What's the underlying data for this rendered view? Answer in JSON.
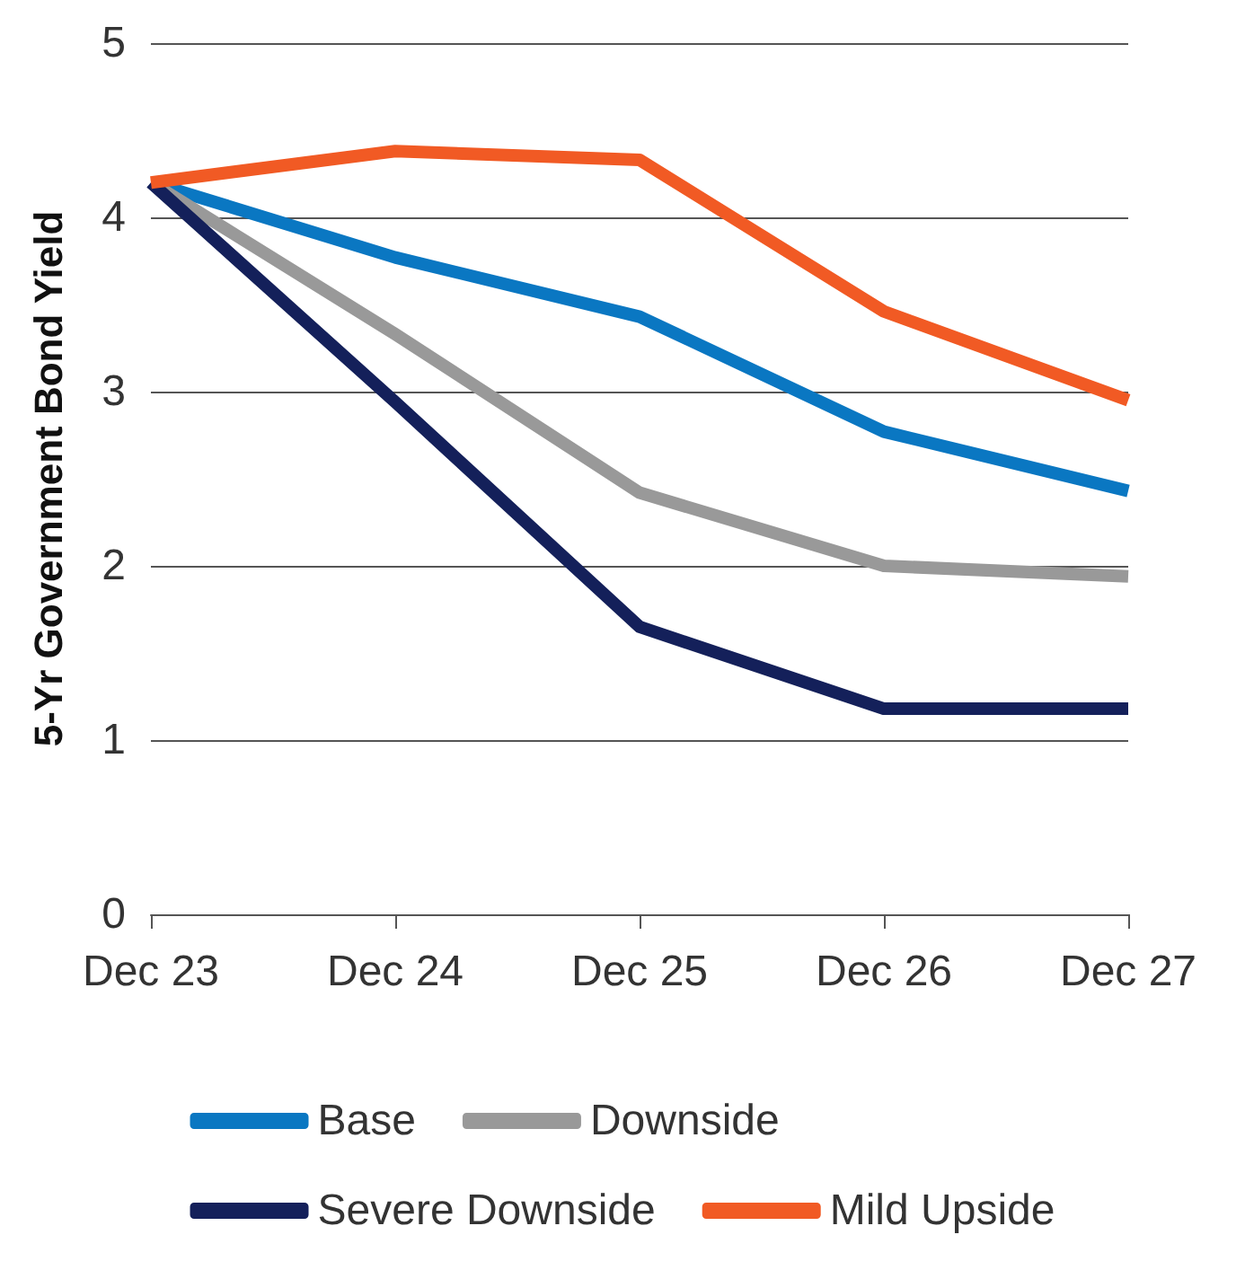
{
  "chart_data": {
    "type": "line",
    "ylabel": "5-Yr Government Bond Yield",
    "categories": [
      "Dec 23",
      "Dec 24",
      "Dec 25",
      "Dec 26",
      "Dec 27"
    ],
    "series": [
      {
        "name": "Base",
        "color": "#0a77c2",
        "values": [
          4.2,
          3.77,
          3.43,
          2.77,
          2.43
        ]
      },
      {
        "name": "Downside",
        "color": "#999999",
        "values": [
          4.2,
          3.33,
          2.42,
          2.0,
          1.94
        ]
      },
      {
        "name": "Severe Downside",
        "color": "#14205a",
        "values": [
          4.2,
          2.94,
          1.65,
          1.18,
          1.18
        ]
      },
      {
        "name": "Mild Upside",
        "color": "#f15a24",
        "values": [
          4.2,
          4.38,
          4.33,
          3.46,
          2.95
        ]
      }
    ],
    "ylim": [
      0,
      5
    ],
    "yticks": [
      0,
      1,
      2,
      3,
      4,
      5
    ],
    "grid": "y",
    "legend": "bottom",
    "marker": "none",
    "line_style": "solid"
  }
}
